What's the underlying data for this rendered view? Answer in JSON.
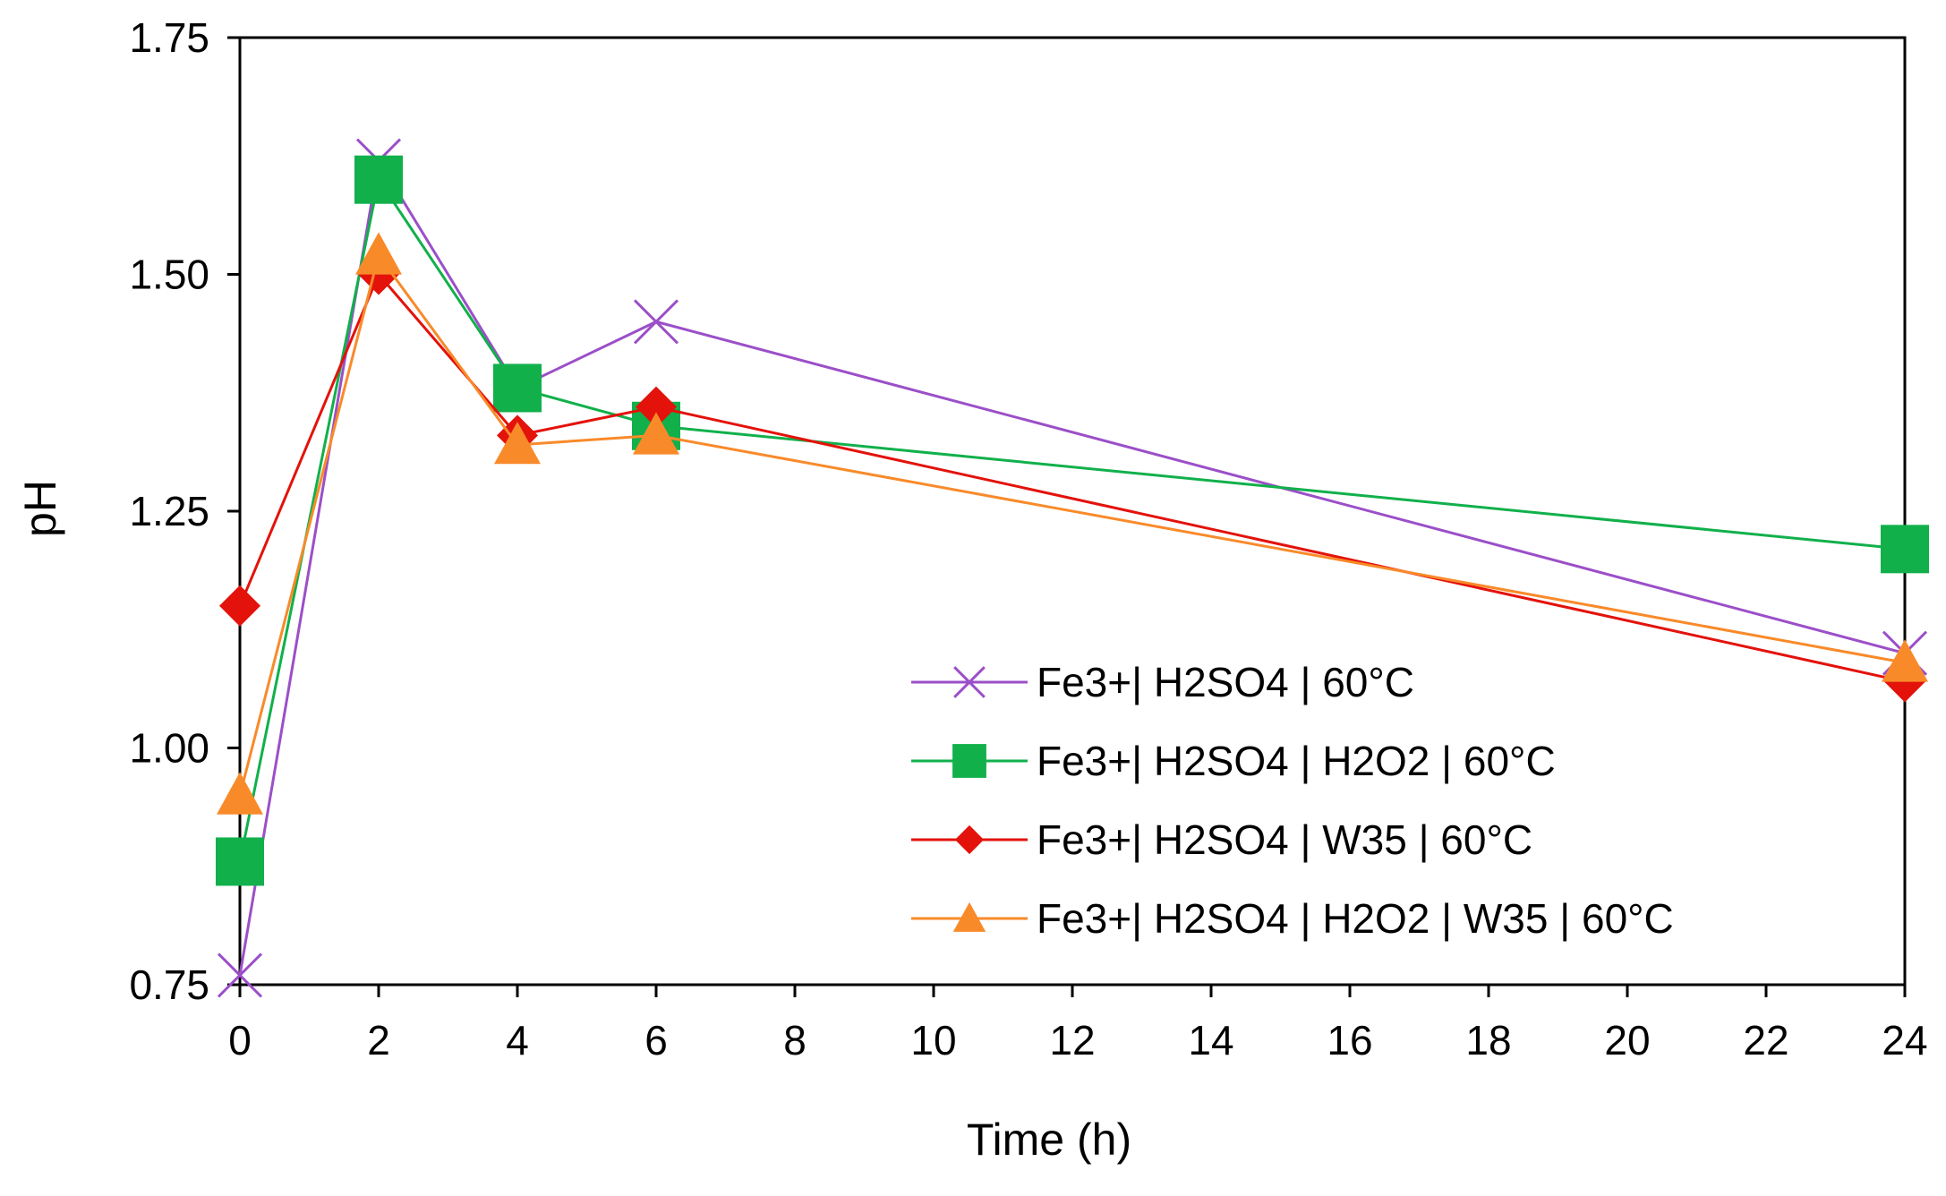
{
  "chart_data": {
    "type": "line",
    "title": "",
    "xlabel": "Time (h)",
    "ylabel": "pH",
    "xlim": [
      0,
      24
    ],
    "ylim": [
      0.75,
      1.75
    ],
    "x_ticks": [
      0,
      2,
      4,
      6,
      8,
      10,
      12,
      14,
      16,
      18,
      20,
      22,
      24
    ],
    "x_tick_labels": [
      "0",
      "2",
      "4",
      "6",
      "8",
      "10",
      "12",
      "14",
      "16",
      "18",
      "20",
      "22",
      "24"
    ],
    "y_ticks": [
      0.75,
      1.0,
      1.25,
      1.5,
      1.75
    ],
    "y_tick_labels": [
      "0.75",
      "1.00",
      "1.25",
      "1.50",
      "1.75"
    ],
    "grid": false,
    "legend_position": "bottom-right",
    "x": [
      0,
      2,
      4,
      6,
      24
    ],
    "series": [
      {
        "name": "Fe3+| H2SO4 | 60°C",
        "values": [
          0.76,
          1.62,
          1.38,
          1.45,
          1.1
        ],
        "color": "#9b4fc8",
        "marker": "x"
      },
      {
        "name": "Fe3+| H2SO4 | H2O2 | 60°C",
        "values": [
          0.88,
          1.6,
          1.38,
          1.34,
          1.21
        ],
        "color": "#11b04b",
        "marker": "square"
      },
      {
        "name": "Fe3+| H2SO4 | W35 | 60°C",
        "values": [
          1.15,
          1.5,
          1.33,
          1.36,
          1.07
        ],
        "color": "#e3120b",
        "marker": "diamond"
      },
      {
        "name": "Fe3+| H2SO4 | H2O2 | W35 | 60°C",
        "values": [
          0.95,
          1.52,
          1.32,
          1.33,
          1.09
        ],
        "color": "#f98a2a",
        "marker": "triangle"
      }
    ]
  }
}
